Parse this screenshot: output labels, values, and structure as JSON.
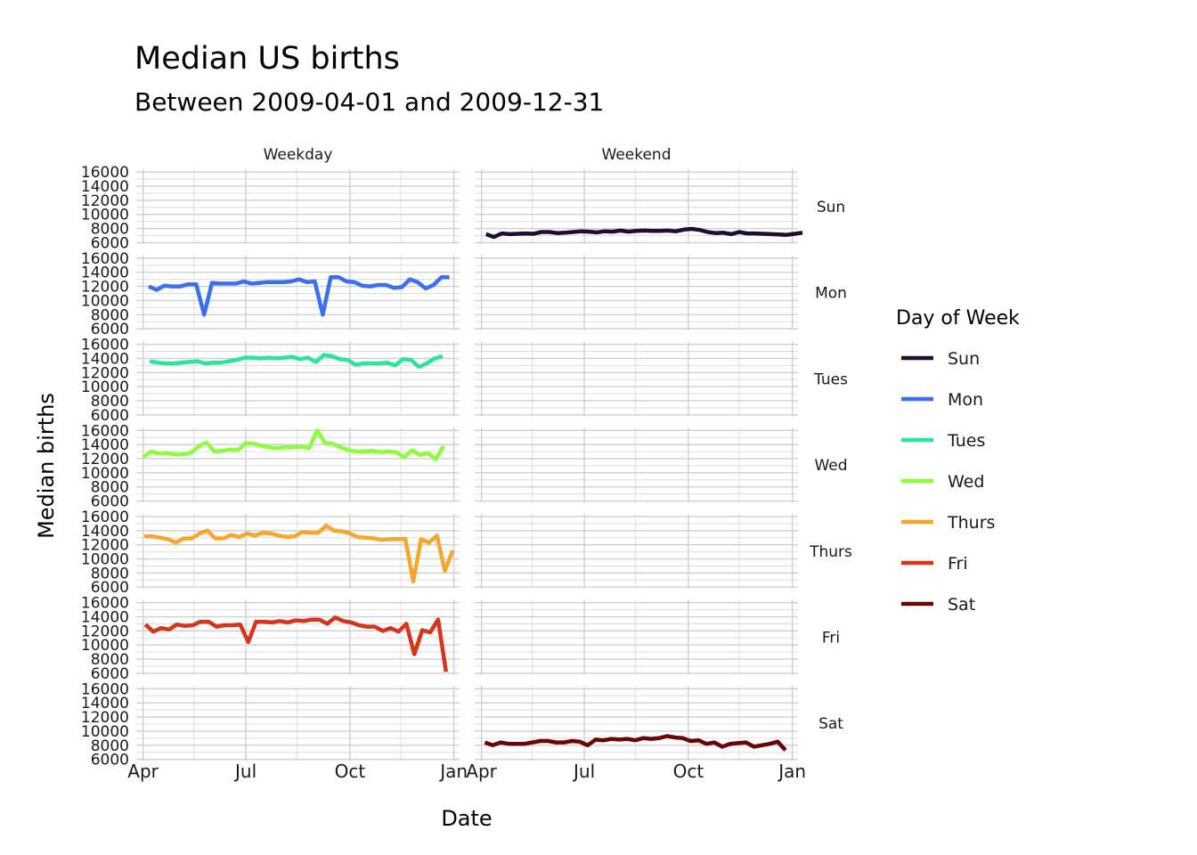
{
  "chart_data": {
    "type": "line",
    "title": "Median US births",
    "subtitle": "Between 2009-04-01 and 2009-12-31",
    "xlabel": "Date",
    "ylabel": "Median births",
    "x_range": [
      "2009-03-26",
      "2010-01-06"
    ],
    "x_ticks": [
      {
        "date": "2009-04-01",
        "label": "Apr"
      },
      {
        "date": "2009-07-01",
        "label": "Jul"
      },
      {
        "date": "2009-10-01",
        "label": "Oct"
      },
      {
        "date": "2010-01-01",
        "label": "Jan"
      }
    ],
    "x_minor_ticks": [
      "2009-05-16",
      "2009-08-15",
      "2009-11-15"
    ],
    "y_range": [
      5800,
      16400
    ],
    "y_ticks": [
      6000,
      8000,
      10000,
      12000,
      14000,
      16000
    ],
    "grid": true,
    "facet_columns": [
      "Weekday",
      "Weekend"
    ],
    "facet_rows": [
      "Sun",
      "Mon",
      "Tues",
      "Wed",
      "Thurs",
      "Fri",
      "Sat"
    ],
    "legend": {
      "title": "Day of Week",
      "position": "right"
    },
    "series": [
      {
        "name": "Sun",
        "facet_column": "Weekend",
        "color": "#1f0e2f",
        "start": "2009-04-05",
        "step_days": 7,
        "values": [
          7200,
          6800,
          7300,
          7200,
          7250,
          7300,
          7250,
          7500,
          7500,
          7350,
          7400,
          7500,
          7600,
          7550,
          7450,
          7600,
          7550,
          7700,
          7550,
          7650,
          7700,
          7650,
          7650,
          7700,
          7600,
          7850,
          7950,
          7800,
          7500,
          7350,
          7400,
          7200,
          7500,
          7300,
          7300,
          7250,
          7200,
          7150,
          7100,
          7250,
          7400
        ]
      },
      {
        "name": "Mon",
        "facet_column": "Weekday",
        "color": "#3b6ef2",
        "start": "2009-04-06",
        "step_days": 7,
        "values": [
          12000,
          11500,
          12100,
          12000,
          12000,
          12300,
          12300,
          8000,
          12500,
          12400,
          12400,
          12400,
          12700,
          12400,
          12500,
          12600,
          12600,
          12600,
          12700,
          13000,
          12600,
          12700,
          8000,
          13300,
          13300,
          12700,
          12600,
          12100,
          12000,
          12200,
          12200,
          11800,
          11900,
          13000,
          12600,
          11700,
          12200,
          13300,
          13300
        ]
      },
      {
        "name": "Tues",
        "facet_column": "Weekday",
        "color": "#2be59a",
        "start": "2009-04-07",
        "step_days": 7,
        "values": [
          13600,
          13400,
          13300,
          13300,
          13400,
          13500,
          13600,
          13300,
          13400,
          13400,
          13600,
          13800,
          14100,
          14100,
          14000,
          14100,
          14000,
          14100,
          14200,
          13900,
          14100,
          13500,
          14500,
          14300,
          13900,
          13800,
          13100,
          13300,
          13300,
          13300,
          13400,
          13000,
          13900,
          13800,
          12800,
          13300,
          14000,
          14300
        ]
      },
      {
        "name": "Wed",
        "facet_column": "Weekday",
        "color": "#8efc3e",
        "start": "2009-04-01",
        "step_days": 7,
        "values": [
          12200,
          13000,
          12700,
          12800,
          12600,
          12600,
          12800,
          13700,
          14300,
          13000,
          13100,
          13300,
          13200,
          14200,
          14100,
          13800,
          13600,
          13500,
          13600,
          13600,
          13700,
          13500,
          16000,
          14200,
          14100,
          13600,
          13200,
          13000,
          13000,
          13100,
          12900,
          13000,
          12900,
          12200,
          13200,
          12500,
          12800,
          11900,
          13800
        ]
      },
      {
        "name": "Thurs",
        "facet_column": "Weekday",
        "color": "#f6a62c",
        "start": "2009-04-02",
        "step_days": 7,
        "values": [
          13200,
          13200,
          13000,
          12800,
          12300,
          12900,
          12900,
          13600,
          14000,
          12900,
          12900,
          13400,
          13100,
          13600,
          13300,
          13700,
          13600,
          13300,
          13100,
          13200,
          13800,
          13700,
          13700,
          14700,
          14000,
          13900,
          13600,
          13100,
          13000,
          12900,
          12700,
          12800,
          12800,
          12800,
          6800,
          12800,
          12300,
          13300,
          8300,
          11200
        ]
      },
      {
        "name": "Fri",
        "facet_column": "Weekday",
        "color": "#d7341a",
        "start": "2009-04-03",
        "step_days": 7,
        "values": [
          12900,
          11900,
          12400,
          12200,
          12900,
          12700,
          12800,
          13300,
          13300,
          12600,
          12800,
          12800,
          12900,
          10400,
          13300,
          13300,
          13200,
          13400,
          13200,
          13500,
          13400,
          13600,
          13600,
          13000,
          13900,
          13400,
          13200,
          12800,
          12600,
          12600,
          12000,
          12400,
          11900,
          13000,
          8700,
          12100,
          11800,
          13600,
          6200
        ]
      },
      {
        "name": "Sat",
        "facet_column": "Weekend",
        "color": "#6b0505",
        "start": "2009-04-04",
        "step_days": 7,
        "values": [
          8400,
          8000,
          8400,
          8200,
          8200,
          8200,
          8400,
          8600,
          8600,
          8400,
          8400,
          8600,
          8500,
          8000,
          8800,
          8700,
          8900,
          8800,
          8900,
          8700,
          9000,
          8900,
          9000,
          9300,
          9100,
          9000,
          8600,
          8700,
          8200,
          8400,
          7800,
          8200,
          8300,
          8400,
          7800,
          8000,
          8200,
          8500,
          7300
        ]
      }
    ]
  }
}
